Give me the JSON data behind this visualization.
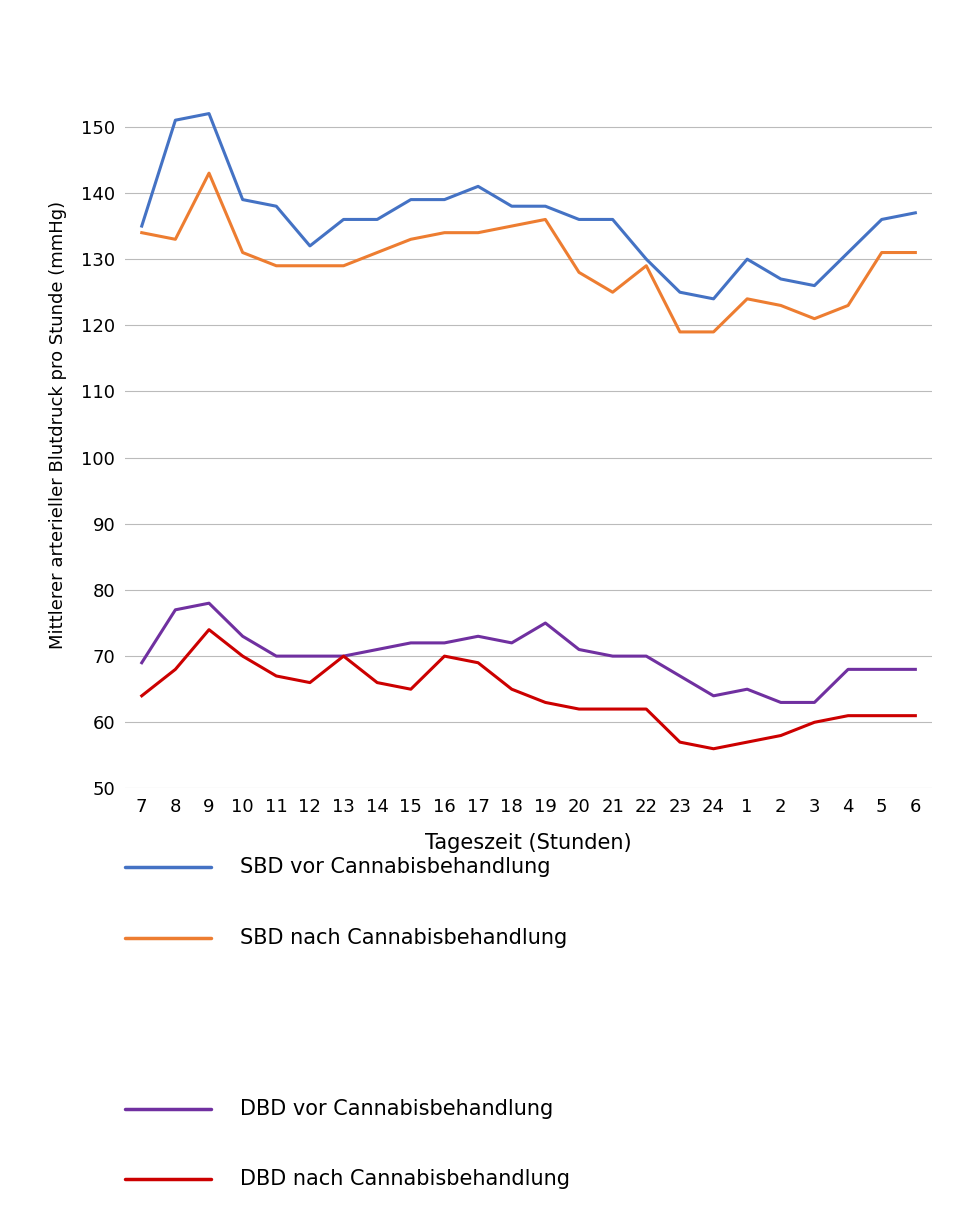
{
  "x_labels": [
    "7",
    "8",
    "9",
    "10",
    "11",
    "12",
    "13",
    "14",
    "15",
    "16",
    "17",
    "18",
    "19",
    "20",
    "21",
    "22",
    "23",
    "24",
    "1",
    "2",
    "3",
    "4",
    "5",
    "6"
  ],
  "x_values": [
    0,
    1,
    2,
    3,
    4,
    5,
    6,
    7,
    8,
    9,
    10,
    11,
    12,
    13,
    14,
    15,
    16,
    17,
    18,
    19,
    20,
    21,
    22,
    23
  ],
  "sbd_vor": [
    135,
    151,
    152,
    139,
    138,
    132,
    136,
    136,
    139,
    139,
    141,
    138,
    138,
    136,
    136,
    130,
    125,
    124,
    130,
    127,
    126,
    131,
    136,
    137
  ],
  "sbd_nach": [
    134,
    133,
    143,
    131,
    129,
    129,
    129,
    131,
    133,
    134,
    134,
    135,
    136,
    128,
    125,
    129,
    119,
    119,
    124,
    123,
    121,
    123,
    131,
    131
  ],
  "dbd_vor": [
    69,
    77,
    78,
    73,
    70,
    70,
    70,
    71,
    72,
    72,
    73,
    72,
    75,
    71,
    70,
    70,
    67,
    64,
    65,
    63,
    63,
    68,
    68,
    68
  ],
  "dbd_nach": [
    64,
    68,
    74,
    70,
    67,
    66,
    70,
    66,
    65,
    70,
    69,
    65,
    63,
    62,
    62,
    62,
    57,
    56,
    57,
    58,
    60,
    61,
    61,
    61
  ],
  "sbd_vor_color": "#4472C4",
  "sbd_nach_color": "#ED7D31",
  "dbd_vor_color": "#7030A0",
  "dbd_nach_color": "#CC0000",
  "ylabel": "Mittlerer arterieller Blutdruck pro Stunde (mmHg)",
  "xlabel": "Tageszeit (Stunden)",
  "ylim": [
    50,
    160
  ],
  "yticks": [
    50,
    60,
    70,
    80,
    90,
    100,
    110,
    120,
    130,
    140,
    150
  ],
  "legend_sbd_vor": "SBD vor Cannabisbehandlung",
  "legend_sbd_nach": "SBD nach Cannabisbehandlung",
  "legend_dbd_vor": "DBD vor Cannabisbehandlung",
  "legend_dbd_nach": "DBD nach Cannabisbehandlung",
  "line_width": 2.2,
  "background_color": "#FFFFFF",
  "grid_color": "#BBBBBB",
  "tick_fontsize": 13,
  "ylabel_fontsize": 13,
  "xlabel_fontsize": 15,
  "legend_fontsize": 15
}
